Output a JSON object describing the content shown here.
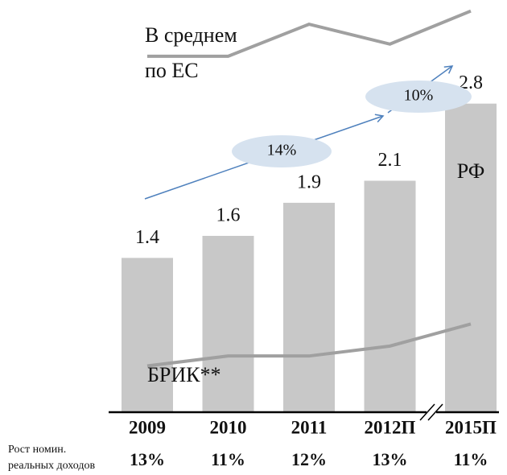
{
  "chart_data": {
    "type": "bar",
    "categories": [
      "2009",
      "2010",
      "2011",
      "2012П",
      "2015П"
    ],
    "values": [
      1.4,
      1.6,
      1.9,
      2.1,
      2.8
    ],
    "color": "#c8c8c8",
    "ylim": [
      0,
      3.74
    ],
    "bar_label": "РФ",
    "lines": [
      {
        "label": [
          "В среднем",
          "по ЕС"
        ],
        "color": "#a0a0a0",
        "values": [
          3.23,
          3.23,
          3.52,
          3.34,
          3.64
        ]
      },
      {
        "label": [
          "БРИК**"
        ],
        "color": "#a0a0a0",
        "values": [
          0.42,
          0.51,
          0.51,
          0.6,
          0.8
        ]
      }
    ],
    "annotations": [
      "14%",
      "10%"
    ],
    "growth_label": [
      "Рост номин.",
      "реальных доходов"
    ],
    "growth": [
      "13%",
      "11%",
      "12%",
      "13%",
      "11%"
    ]
  }
}
